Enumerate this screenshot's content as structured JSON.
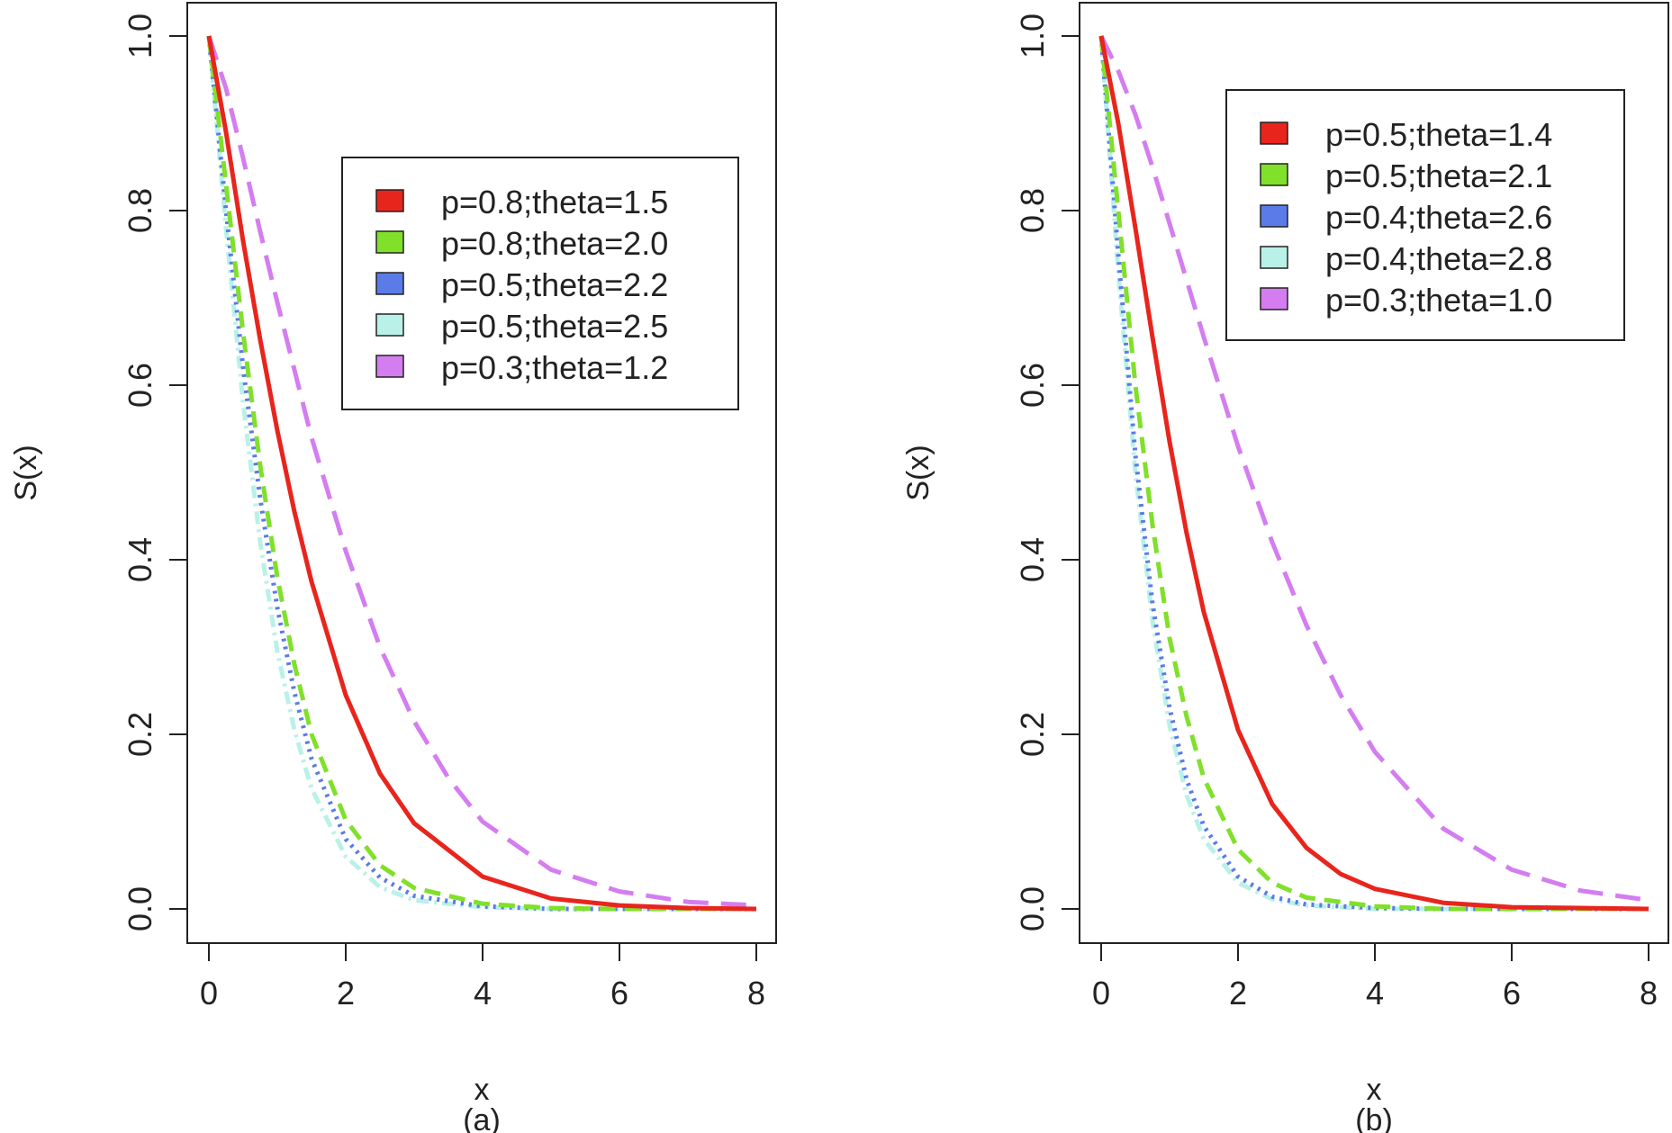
{
  "chart_data": [
    {
      "type": "line",
      "xlabel": "x",
      "ylabel": "S(x)",
      "caption": "(a)",
      "xlim": [
        0,
        8
      ],
      "ylim": [
        0,
        1
      ],
      "xticks": [
        "0",
        "2",
        "4",
        "6",
        "8"
      ],
      "yticks": [
        "0.0",
        "0.2",
        "0.4",
        "0.6",
        "0.8",
        "1.0"
      ],
      "legend_position": "top-right",
      "series": [
        {
          "name": "p=0.8;theta=1.5",
          "color": "#e8251d",
          "dash": "solid",
          "x": [
            0,
            0.25,
            0.5,
            0.75,
            1,
            1.25,
            1.5,
            2,
            2.5,
            3,
            4,
            5,
            6,
            7,
            8
          ],
          "y": [
            1.0,
            0.89,
            0.765,
            0.652,
            0.548,
            0.455,
            0.375,
            0.245,
            0.155,
            0.098,
            0.037,
            0.012,
            0.004,
            0.001,
            0.0
          ]
        },
        {
          "name": "p=0.8;theta=2.0",
          "color": "#80e02a",
          "dash": "dashed",
          "x": [
            0,
            0.25,
            0.5,
            0.75,
            1,
            1.25,
            1.5,
            2,
            2.5,
            3,
            4,
            5,
            6,
            7,
            8
          ],
          "y": [
            1.0,
            0.83,
            0.66,
            0.508,
            0.38,
            0.28,
            0.2,
            0.102,
            0.05,
            0.024,
            0.006,
            0.001,
            0.0,
            0.0,
            0.0
          ]
        },
        {
          "name": "p=0.5;theta=2.2",
          "color": "#5b7be8",
          "dash": "dotted",
          "x": [
            0,
            0.25,
            0.5,
            0.75,
            1,
            1.25,
            1.5,
            2,
            2.5,
            3,
            4,
            5,
            6,
            7,
            8
          ],
          "y": [
            1.0,
            0.8,
            0.62,
            0.47,
            0.345,
            0.248,
            0.172,
            0.08,
            0.036,
            0.015,
            0.003,
            0.0,
            0.0,
            0.0,
            0.0
          ]
        },
        {
          "name": "p=0.5;theta=2.5",
          "color": "#b9f1e8",
          "dash": "dotdash",
          "x": [
            0,
            0.25,
            0.5,
            0.75,
            1,
            1.25,
            1.5,
            2,
            2.5,
            3,
            4,
            5,
            6,
            7,
            8
          ],
          "y": [
            1.0,
            0.78,
            0.58,
            0.42,
            0.295,
            0.205,
            0.138,
            0.06,
            0.025,
            0.01,
            0.002,
            0.0,
            0.0,
            0.0,
            0.0
          ]
        },
        {
          "name": "p=0.3;theta=1.2",
          "color": "#d47df0",
          "dash": "longdash",
          "x": [
            0,
            0.25,
            0.5,
            0.75,
            1,
            1.5,
            2,
            2.5,
            3,
            3.5,
            4,
            5,
            6,
            7,
            8
          ],
          "y": [
            1.0,
            0.94,
            0.86,
            0.776,
            0.695,
            0.54,
            0.41,
            0.3,
            0.215,
            0.15,
            0.1,
            0.045,
            0.02,
            0.008,
            0.004
          ]
        }
      ]
    },
    {
      "type": "line",
      "xlabel": "x",
      "ylabel": "S(x)",
      "caption": "(b)",
      "xlim": [
        0,
        8
      ],
      "ylim": [
        0,
        1
      ],
      "xticks": [
        "0",
        "2",
        "4",
        "6",
        "8"
      ],
      "yticks": [
        "0.0",
        "0.2",
        "0.4",
        "0.6",
        "0.8",
        "1.0"
      ],
      "legend_position": "top-right",
      "series": [
        {
          "name": "p=0.5;theta=1.4",
          "color": "#e8251d",
          "dash": "solid",
          "x": [
            0,
            0.25,
            0.5,
            0.75,
            1,
            1.25,
            1.5,
            2,
            2.5,
            3,
            3.5,
            4,
            5,
            6,
            7,
            8
          ],
          "y": [
            1.0,
            0.9,
            0.78,
            0.655,
            0.535,
            0.43,
            0.34,
            0.205,
            0.12,
            0.07,
            0.04,
            0.023,
            0.007,
            0.002,
            0.001,
            0.0
          ]
        },
        {
          "name": "p=0.5;theta=2.1",
          "color": "#80e02a",
          "dash": "dashed",
          "x": [
            0,
            0.25,
            0.5,
            0.75,
            1,
            1.25,
            1.5,
            2,
            2.5,
            3,
            4,
            5,
            6,
            7,
            8
          ],
          "y": [
            1.0,
            0.8,
            0.6,
            0.44,
            0.31,
            0.22,
            0.15,
            0.068,
            0.03,
            0.013,
            0.003,
            0.0,
            0.0,
            0.0,
            0.0
          ]
        },
        {
          "name": "p=0.4;theta=2.6",
          "color": "#5b7be8",
          "dash": "dotted",
          "x": [
            0,
            0.25,
            0.5,
            0.75,
            1,
            1.25,
            1.5,
            2,
            2.5,
            3,
            4,
            5,
            6,
            7,
            8
          ],
          "y": [
            1.0,
            0.75,
            0.52,
            0.35,
            0.23,
            0.148,
            0.095,
            0.037,
            0.014,
            0.005,
            0.001,
            0.0,
            0.0,
            0.0,
            0.0
          ]
        },
        {
          "name": "p=0.4;theta=2.8",
          "color": "#b9f1e8",
          "dash": "dotdash",
          "x": [
            0,
            0.25,
            0.5,
            0.75,
            1,
            1.25,
            1.5,
            2,
            2.5,
            3,
            4,
            5,
            6,
            7,
            8
          ],
          "y": [
            1.0,
            0.73,
            0.5,
            0.33,
            0.21,
            0.13,
            0.08,
            0.03,
            0.011,
            0.004,
            0.0,
            0.0,
            0.0,
            0.0,
            0.0
          ]
        },
        {
          "name": "p=0.3;theta=1.0",
          "color": "#d47df0",
          "dash": "longdash",
          "x": [
            0,
            0.25,
            0.5,
            0.75,
            1,
            1.5,
            2,
            2.5,
            3,
            3.5,
            4,
            5,
            6,
            7,
            8
          ],
          "y": [
            1.0,
            0.96,
            0.91,
            0.85,
            0.785,
            0.655,
            0.53,
            0.42,
            0.325,
            0.245,
            0.18,
            0.092,
            0.045,
            0.021,
            0.01
          ]
        }
      ]
    }
  ]
}
